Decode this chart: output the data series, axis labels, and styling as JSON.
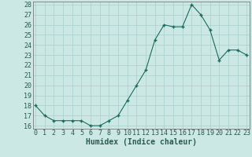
{
  "x": [
    0,
    1,
    2,
    3,
    4,
    5,
    6,
    7,
    8,
    9,
    10,
    11,
    12,
    13,
    14,
    15,
    16,
    17,
    18,
    19,
    20,
    21,
    22,
    23
  ],
  "y": [
    18,
    17,
    16.5,
    16.5,
    16.5,
    16.5,
    16,
    16,
    16.5,
    17,
    18.5,
    20,
    21.5,
    24.5,
    26,
    25.8,
    25.8,
    28,
    27,
    25.5,
    22.5,
    23.5,
    23.5,
    23
  ],
  "xlabel": "Humidex (Indice chaleur)",
  "ylim_min": 16,
  "ylim_max": 28,
  "xlim_min": 0,
  "xlim_max": 23,
  "yticks": [
    16,
    17,
    18,
    19,
    20,
    21,
    22,
    23,
    24,
    25,
    26,
    27,
    28
  ],
  "line_color": "#1a6b5e",
  "marker_color": "#1a6b5e",
  "bg_color": "#cce8e4",
  "grid_color": "#aacfcc",
  "axis_color": "#666666",
  "font_color": "#2a5a50",
  "tick_fontsize": 6,
  "xlabel_fontsize": 7
}
